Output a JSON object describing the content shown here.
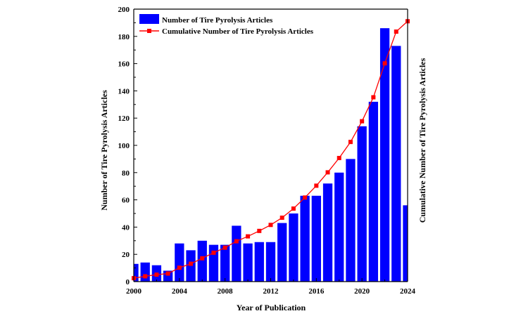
{
  "chart_data": {
    "type": "bar",
    "xlabel": "Year of Publication",
    "ylabel": "Number of Tire Pyrolysis Articles",
    "ylabel_right": "Cumulative Number of Tire Pyrolysis Articles",
    "xlim": [
      2000,
      2024
    ],
    "ylim": [
      0,
      200
    ],
    "x_ticks": [
      "2000",
      "2004",
      "2008",
      "2012",
      "2016",
      "2020",
      "2024"
    ],
    "y_ticks": [
      "0",
      "20",
      "40",
      "60",
      "80",
      "100",
      "120",
      "140",
      "160",
      "180",
      "200"
    ],
    "legend_position": "top-left",
    "grid": false,
    "series": [
      {
        "name": "Number of Tire Pyrolysis Articles",
        "type": "bar",
        "color": "#0000ff",
        "x": [
          2000,
          2001,
          2002,
          2003,
          2004,
          2005,
          2006,
          2007,
          2008,
          2009,
          2010,
          2011,
          2012,
          2013,
          2014,
          2015,
          2016,
          2017,
          2018,
          2019,
          2020,
          2021,
          2022,
          2023,
          2024
        ],
        "values": [
          13,
          14,
          12,
          8,
          28,
          23,
          30,
          27,
          27,
          41,
          28,
          29,
          29,
          43,
          50,
          63,
          63,
          72,
          80,
          90,
          114,
          132,
          186,
          173,
          56
        ]
      },
      {
        "name": "Cumulative Number of Tire Pyrolysis Articles",
        "type": "line",
        "color": "#ff0000",
        "x": [
          2000,
          2001,
          2002,
          2003,
          2004,
          2005,
          2006,
          2007,
          2008,
          2009,
          2010,
          2011,
          2012,
          2013,
          2014,
          2015,
          2016,
          2017,
          2018,
          2019,
          2020,
          2021,
          2022,
          2023,
          2024
        ],
        "values": [
          2.5,
          3.9,
          5.1,
          5.9,
          10.2,
          13.1,
          17.1,
          21.2,
          24.9,
          29.6,
          33.2,
          37.2,
          41.6,
          46.9,
          53.6,
          61.7,
          70.4,
          80.2,
          90.7,
          102.5,
          117.7,
          135.3,
          160.2,
          183.5,
          191.1
        ]
      }
    ]
  }
}
